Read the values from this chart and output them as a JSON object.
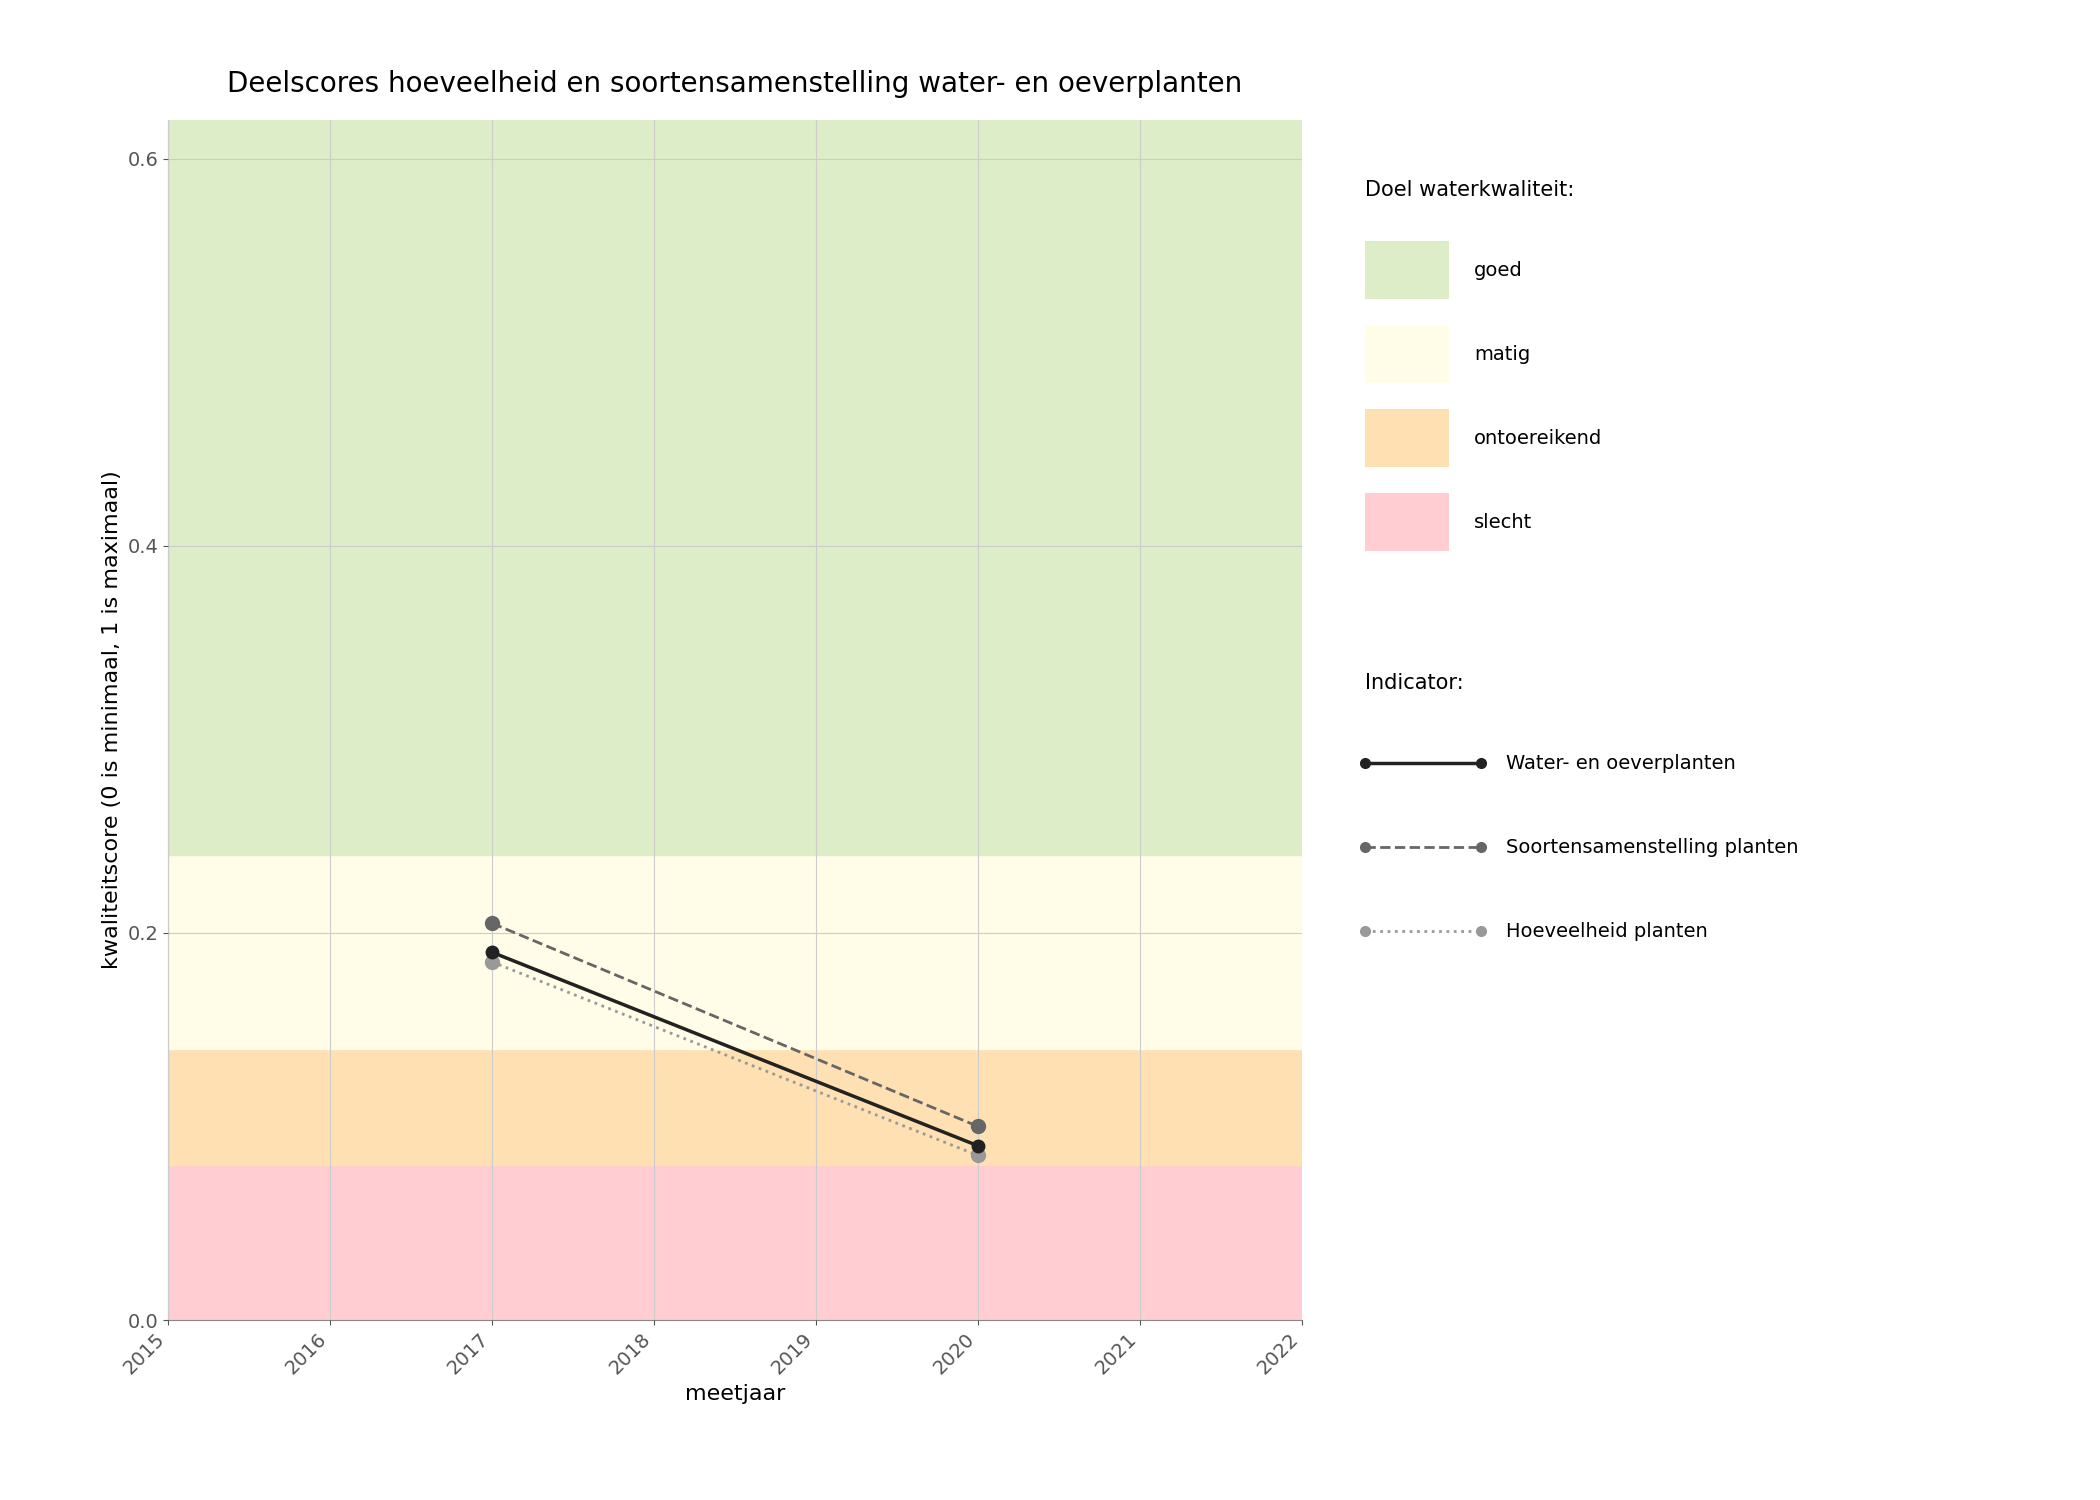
{
  "title": "Deelscores hoeveelheid en soortensamenstelling water- en oeverplanten",
  "xlabel": "meetjaar",
  "ylabel": "kwaliteitscore (0 is minimaal, 1 is maximaal)",
  "xlim": [
    2015,
    2022
  ],
  "ylim": [
    0.0,
    0.62
  ],
  "yticks": [
    0.0,
    0.2,
    0.4,
    0.6
  ],
  "xticks": [
    2015,
    2016,
    2017,
    2018,
    2019,
    2020,
    2021,
    2022
  ],
  "bg_bands": [
    {
      "ymin": 0.0,
      "ymax": 0.08,
      "color": "#FFCDD2",
      "label": "slecht"
    },
    {
      "ymin": 0.08,
      "ymax": 0.14,
      "color": "#FFE0B2",
      "label": "ontoereikend"
    },
    {
      "ymin": 0.14,
      "ymax": 0.24,
      "color": "#FFFDE7",
      "label": "matig"
    },
    {
      "ymin": 0.24,
      "ymax": 0.62,
      "color": "#DCEDC8",
      "label": "goed"
    }
  ],
  "series": [
    {
      "label": "Water- en oeverplanten",
      "x": [
        2017,
        2020
      ],
      "y": [
        0.19,
        0.09
      ],
      "color": "#222222",
      "linestyle": "solid",
      "linewidth": 2.5,
      "markersize": 9,
      "marker": "o",
      "zorder": 5
    },
    {
      "label": "Soortensamenstelling planten",
      "x": [
        2017,
        2020
      ],
      "y": [
        0.205,
        0.1
      ],
      "color": "#666666",
      "linestyle": "dashed",
      "linewidth": 2.0,
      "markersize": 10,
      "marker": "o",
      "zorder": 4
    },
    {
      "label": "Hoeveelheid planten",
      "x": [
        2017,
        2020
      ],
      "y": [
        0.185,
        0.085
      ],
      "color": "#999999",
      "linestyle": "dotted",
      "linewidth": 2.0,
      "markersize": 10,
      "marker": "o",
      "zorder": 3
    }
  ],
  "legend_title1": "Doel waterkwaliteit:",
  "legend_title2": "Indicator:",
  "bg_colors": [
    "#DCEDC8",
    "#FFFDE7",
    "#FFE0B2",
    "#FFCDD2"
  ],
  "bg_labels": [
    "goed",
    "matig",
    "ontoereikend",
    "slecht"
  ],
  "background_color": "#FFFFFF",
  "grid_color": "#CCCCCC",
  "title_fontsize": 20,
  "label_fontsize": 16,
  "tick_fontsize": 14,
  "legend_fontsize": 14
}
